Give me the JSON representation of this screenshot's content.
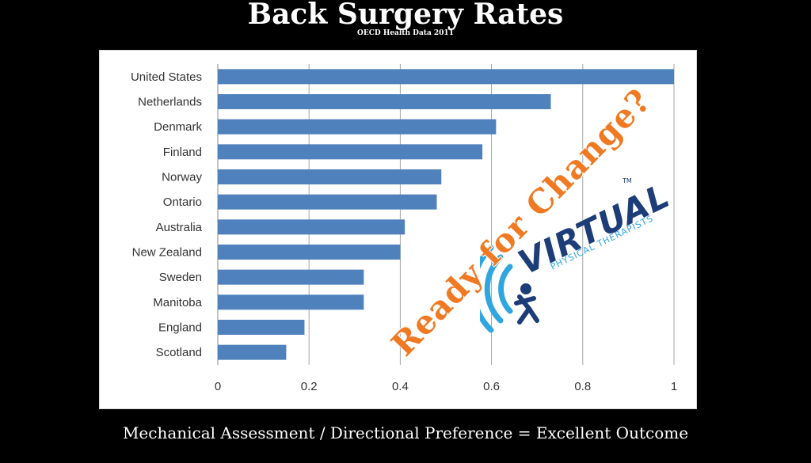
{
  "header": {
    "title": "Back Surgery Rates",
    "subtitle": "OECD Health Data 2011"
  },
  "footer": {
    "text": "Mechanical Assessment / Directional Preference = Excellent Outcome"
  },
  "overlay": {
    "slogan": "Ready for Change?",
    "brand_name": "VIRTUAL",
    "brand_tagline": "PHYSICAL THERAPISTS",
    "trademark": "TM",
    "slogan_color": "#f07a23",
    "brand_color": "#1c3d78",
    "accent_color": "#2fa6e0"
  },
  "chart_data": {
    "type": "bar",
    "orientation": "horizontal",
    "categories": [
      "United States",
      "Netherlands",
      "Denmark",
      "Finland",
      "Norway",
      "Ontario",
      "Australia",
      "New Zealand",
      "Sweden",
      "Manitoba",
      "England",
      "Scotland"
    ],
    "values": [
      1.0,
      0.73,
      0.61,
      0.58,
      0.49,
      0.48,
      0.41,
      0.4,
      0.32,
      0.32,
      0.19,
      0.15
    ],
    "xlim": [
      0,
      1
    ],
    "xticks": [
      "0",
      "0.2",
      "0.4",
      "0.6",
      "0.8",
      "1"
    ],
    "grid": true,
    "bar_color": "#4f81bd"
  }
}
